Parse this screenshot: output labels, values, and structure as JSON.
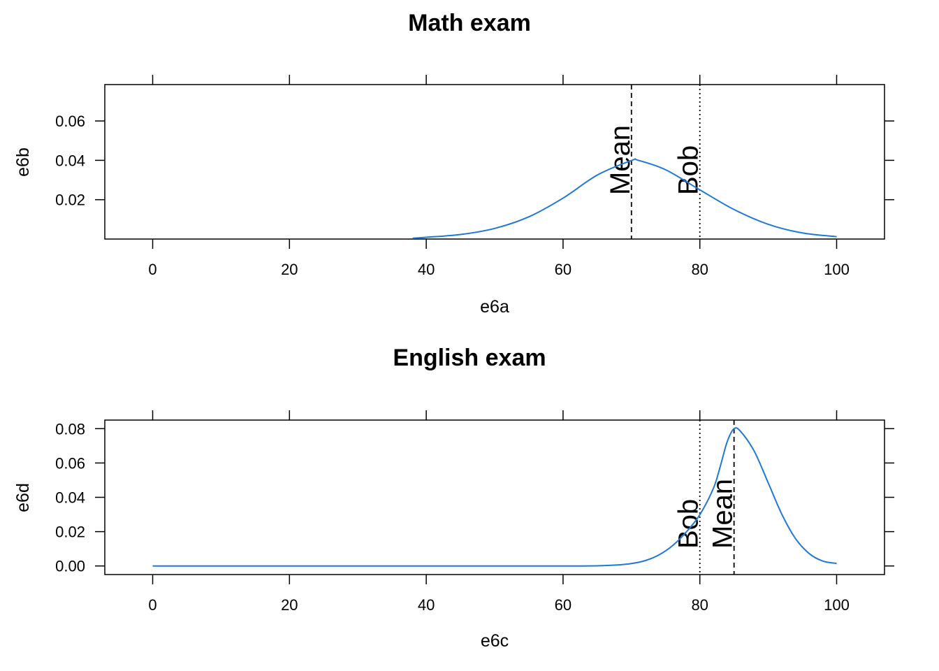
{
  "chart_data": [
    {
      "type": "line",
      "title": "Math exam",
      "xlabel": "e6a",
      "ylabel": "e6b",
      "xlim": [
        -7,
        107
      ],
      "ylim": [
        0.0,
        0.0785
      ],
      "xticks": [
        "0",
        "20",
        "40",
        "60",
        "80",
        "100"
      ],
      "yticks": [
        "0.02",
        "0.04",
        "0.06"
      ],
      "series": [
        {
          "color": "#1f78d8",
          "points": [
            [
              38,
              0.0004
            ],
            [
              40,
              0.0009
            ],
            [
              45,
              0.0023
            ],
            [
              50,
              0.0054
            ],
            [
              55,
              0.0113
            ],
            [
              60,
              0.0208
            ],
            [
              65,
              0.0325
            ],
            [
              70,
              0.0399
            ],
            [
              71,
              0.04
            ],
            [
              75,
              0.0352
            ],
            [
              80,
              0.025
            ],
            [
              85,
              0.015
            ],
            [
              90,
              0.0075
            ],
            [
              95,
              0.0031
            ],
            [
              100,
              0.0012
            ]
          ]
        }
      ],
      "vlines": [
        {
          "x": 70,
          "label": "Mean",
          "style": "dashed"
        },
        {
          "x": 80,
          "label": "Bob",
          "style": "dotted"
        }
      ]
    },
    {
      "type": "line",
      "title": "English exam",
      "xlabel": "e6c",
      "ylabel": "e6d",
      "xlim": [
        -7,
        107
      ],
      "ylim": [
        -0.005,
        0.085
      ],
      "xticks": [
        "0",
        "20",
        "40",
        "60",
        "80",
        "100"
      ],
      "yticks": [
        "0.00",
        "0.02",
        "0.04",
        "0.06",
        "0.08"
      ],
      "series": [
        {
          "color": "#1f78d8",
          "points": [
            [
              0,
              0
            ],
            [
              10,
              0
            ],
            [
              20,
              0
            ],
            [
              30,
              0
            ],
            [
              40,
              0
            ],
            [
              50,
              0
            ],
            [
              60,
              0
            ],
            [
              65,
              0.0001
            ],
            [
              68,
              0.0006
            ],
            [
              70,
              0.0014
            ],
            [
              72,
              0.0031
            ],
            [
              74,
              0.0064
            ],
            [
              76,
              0.0118
            ],
            [
              78,
              0.0197
            ],
            [
              80,
              0.0299
            ],
            [
              82,
              0.0454
            ],
            [
              83,
              0.0582
            ],
            [
              84,
              0.0724
            ],
            [
              85,
              0.08
            ],
            [
              86,
              0.0782
            ],
            [
              88,
              0.0665
            ],
            [
              90,
              0.0484
            ],
            [
              92,
              0.03
            ],
            [
              94,
              0.0159
            ],
            [
              96,
              0.0072
            ],
            [
              98,
              0.0028
            ],
            [
              100,
              0.0015
            ]
          ]
        }
      ],
      "vlines": [
        {
          "x": 80,
          "label": "Bob",
          "style": "dotted"
        },
        {
          "x": 85,
          "label": "Mean",
          "style": "dashed"
        }
      ]
    }
  ]
}
